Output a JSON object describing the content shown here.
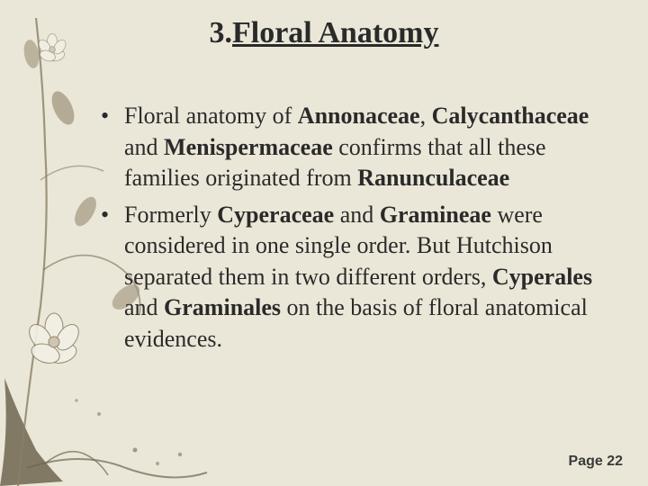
{
  "title": {
    "prefix": "3.",
    "underlined": "Floral Anatomy"
  },
  "bullets": [
    {
      "segments": [
        {
          "text": "Floral anatomy of ",
          "bold": false
        },
        {
          "text": "Annonaceae",
          "bold": true
        },
        {
          "text": ", ",
          "bold": false
        },
        {
          "text": "Calycanthaceae",
          "bold": true
        },
        {
          "text": " and  ",
          "bold": false
        },
        {
          "text": "Menispermaceae",
          "bold": true
        },
        {
          "text": " confirms that all these families originated from ",
          "bold": false
        },
        {
          "text": "Ranunculaceae",
          "bold": true
        }
      ]
    },
    {
      "segments": [
        {
          "text": "Formerly ",
          "bold": false
        },
        {
          "text": "Cyperaceae",
          "bold": true
        },
        {
          "text": " and ",
          "bold": false
        },
        {
          "text": "Gramineae",
          "bold": true
        },
        {
          "text": " were considered in one single order. But Hutchison separated them in two different orders,  ",
          "bold": false
        },
        {
          "text": "Cyperales",
          "bold": true
        },
        {
          "text": " and ",
          "bold": false
        },
        {
          "text": "Graminales",
          "bold": true
        },
        {
          "text": " on the basis of floral anatomical evidences.",
          "bold": false
        }
      ]
    }
  ],
  "page_label": "Page 22",
  "colors": {
    "background": "#ebe7d8",
    "text": "#2a2a2a",
    "decor_dark": "#6e6550",
    "decor_mid": "#9c917a",
    "decor_light": "#cac2ae",
    "flower_petal": "#f2efe5",
    "flower_outline": "#8a8067"
  }
}
